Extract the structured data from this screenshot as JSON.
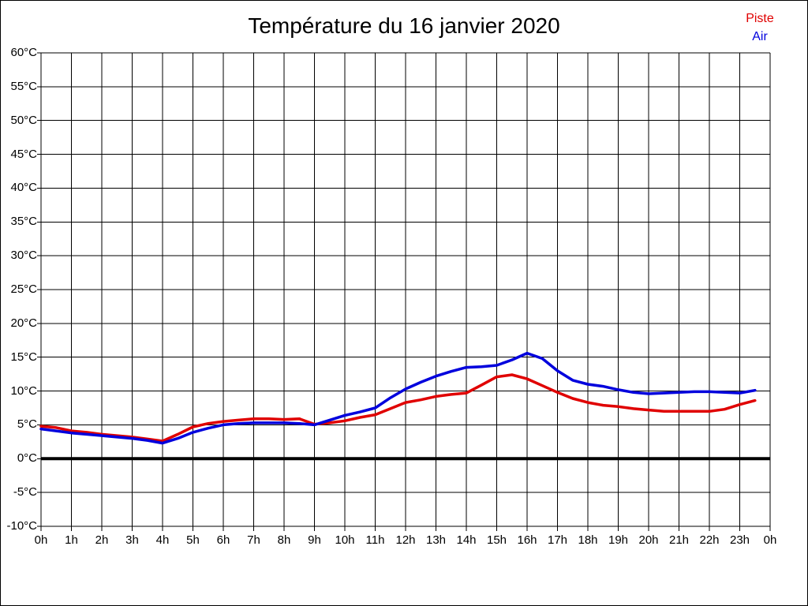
{
  "window": {
    "background_color": "#ffffff",
    "frame_color": "#000000"
  },
  "chart_data": {
    "type": "line",
    "title": "Température du 16 janvier 2020",
    "xlabel": "",
    "ylabel": "",
    "x_unit": "h",
    "y_unit": "°C",
    "xlim": [
      0,
      24
    ],
    "ylim": [
      -10,
      60
    ],
    "y_tick_step": 5,
    "x_tick_step": 1,
    "grid": true,
    "grid_color": "#000000",
    "baseline_y": 0,
    "legend_position": "top-right",
    "y_tick_labels": [
      "60°C",
      "55°C",
      "50°C",
      "45°C",
      "40°C",
      "35°C",
      "30°C",
      "25°C",
      "20°C",
      "15°C",
      "10°C",
      "5°C",
      "0°C",
      "-5°C",
      "-10°C"
    ],
    "x_tick_labels": [
      "0h",
      "1h",
      "2h",
      "3h",
      "4h",
      "5h",
      "6h",
      "7h",
      "8h",
      "9h",
      "10h",
      "11h",
      "12h",
      "13h",
      "14h",
      "15h",
      "16h",
      "17h",
      "18h",
      "19h",
      "20h",
      "21h",
      "22h",
      "23h",
      "0h"
    ],
    "x": [
      0,
      0.5,
      1,
      1.5,
      2,
      2.5,
      3,
      3.5,
      4,
      4.5,
      5,
      5.5,
      6,
      6.5,
      7,
      7.5,
      8,
      8.5,
      9,
      9.5,
      10,
      10.5,
      11,
      11.5,
      12,
      12.5,
      13,
      13.5,
      14,
      14.5,
      15,
      15.5,
      16,
      16.5,
      17,
      17.5,
      18,
      18.5,
      19,
      19.5,
      20,
      20.5,
      21,
      21.5,
      22,
      22.5,
      23,
      23.5
    ],
    "series": [
      {
        "name": "Piste",
        "color": "#e00000",
        "values": [
          4.8,
          4.6,
          4.1,
          3.9,
          3.6,
          3.4,
          3.2,
          2.9,
          2.6,
          3.6,
          4.7,
          5.2,
          5.5,
          5.7,
          5.9,
          5.9,
          5.8,
          5.9,
          5.1,
          5.3,
          5.6,
          6.1,
          6.5,
          7.4,
          8.3,
          8.7,
          9.2,
          9.5,
          9.7,
          10.9,
          12.1,
          12.4,
          11.8,
          10.8,
          9.8,
          8.9,
          8.3,
          7.9,
          7.7,
          7.4,
          7.2,
          7.0,
          7.0,
          7.0,
          7.0,
          7.3,
          8.0,
          8.6
        ]
      },
      {
        "name": "Air",
        "color": "#0000dd",
        "values": [
          4.4,
          4.1,
          3.8,
          3.6,
          3.4,
          3.2,
          3.0,
          2.7,
          2.3,
          3.0,
          3.9,
          4.5,
          5.0,
          5.2,
          5.3,
          5.3,
          5.3,
          5.2,
          5.0,
          5.7,
          6.4,
          6.9,
          7.5,
          9.0,
          10.3,
          11.3,
          12.2,
          12.9,
          13.5,
          13.6,
          13.8,
          14.6,
          15.6,
          14.8,
          13.0,
          11.6,
          11.0,
          10.7,
          10.2,
          9.8,
          9.6,
          9.7,
          9.8,
          9.9,
          9.9,
          9.8,
          9.7,
          10.1
        ]
      }
    ]
  }
}
